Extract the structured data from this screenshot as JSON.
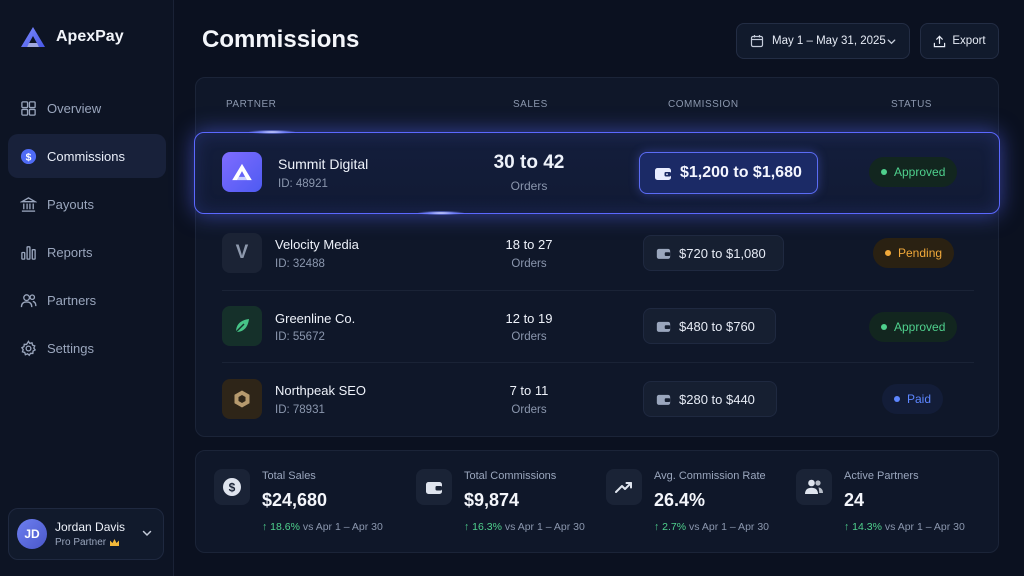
{
  "app": {
    "name": "ApexPay"
  },
  "sidebar": {
    "items": [
      {
        "label": "Overview",
        "icon": "grid-icon",
        "active": false
      },
      {
        "label": "Commissions",
        "icon": "dollar-icon",
        "active": true
      },
      {
        "label": "Payouts",
        "icon": "bank-icon",
        "active": false
      },
      {
        "label": "Reports",
        "icon": "bar-chart-icon",
        "active": false
      },
      {
        "label": "Partners",
        "icon": "users-icon",
        "active": false
      },
      {
        "label": "Settings",
        "icon": "gear-icon",
        "active": false
      }
    ],
    "user": {
      "initials": "JD",
      "name": "Jordan Davis",
      "role": "Pro Partner"
    }
  },
  "header": {
    "title": "Commissions",
    "date_range": "May 1 – May 31, 2025",
    "export_label": "Export"
  },
  "table": {
    "columns": [
      "PARTNER",
      "SALES",
      "COMMISSION",
      "STATUS"
    ],
    "rows": [
      {
        "name": "Summit Digital",
        "id": "ID: 48921",
        "sales": "30 to 42",
        "sales_unit": "Orders",
        "commission": "$1,200 to $1,680",
        "status": "Approved",
        "highlighted": true
      },
      {
        "name": "Velocity Media",
        "id": "ID: 32488",
        "logo_text": "V",
        "sales": "18 to 27",
        "sales_unit": "Orders",
        "commission": "$720 to $1,080",
        "status": "Pending"
      },
      {
        "name": "Greenline Co.",
        "id": "ID: 55672",
        "sales": "12 to 19",
        "sales_unit": "Orders",
        "commission": "$480 to $760",
        "status": "Approved"
      },
      {
        "name": "Northpeak SEO",
        "id": "ID: 78931",
        "sales": "7 to 11",
        "sales_unit": "Orders",
        "commission": "$280 to $440",
        "status": "Paid"
      }
    ]
  },
  "stats": [
    {
      "label": "Total Sales",
      "value": "$24,680",
      "change": "18.6%",
      "period": "vs Apr 1 – Apr 30",
      "icon": "dollar-circle-icon"
    },
    {
      "label": "Total Commissions",
      "value": "$9,874",
      "change": "16.3%",
      "period": "vs Apr 1 – Apr 30",
      "icon": "wallet-icon"
    },
    {
      "label": "Avg. Commission Rate",
      "value": "26.4%",
      "change": "2.7%",
      "period": "vs Apr 1 – Apr 30",
      "icon": "trend-up-icon"
    },
    {
      "label": "Active Partners",
      "value": "24",
      "change": "14.3%",
      "period": "vs Apr 1 – Apr 30",
      "icon": "users-icon"
    }
  ],
  "colors": {
    "accent": "#5b68ff",
    "approved": "#4fd08d",
    "pending": "#f1a93a",
    "paid": "#5d86ff"
  }
}
